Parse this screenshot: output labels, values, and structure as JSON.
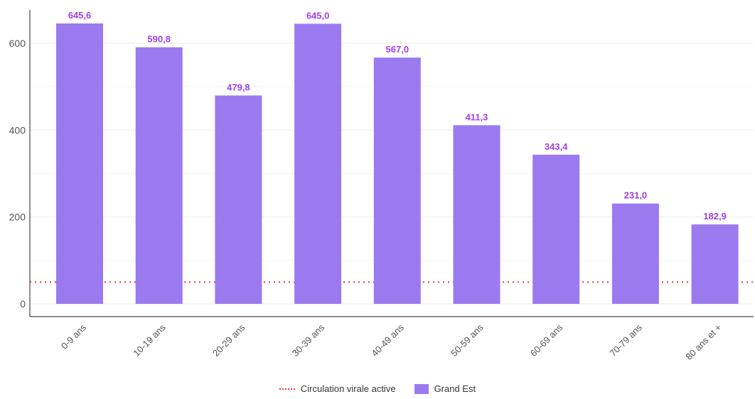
{
  "chart_data": {
    "type": "bar",
    "categories": [
      "0-9 ans",
      "10-19 ans",
      "20-29 ans",
      "30-39 ans",
      "40-49 ans",
      "50-59 ans",
      "60-69 ans",
      "70-79 ans",
      "80 ans et +"
    ],
    "series": [
      {
        "name": "Grand Est",
        "values": [
          645.6,
          590.8,
          479.8,
          645.0,
          567.0,
          411.3,
          343.4,
          231.0,
          182.9
        ],
        "labels": [
          "645,6",
          "590,8",
          "479,8",
          "645,0",
          "567,0",
          "411,3",
          "343,4",
          "231,0",
          "182,9"
        ],
        "color": "#9b7af0"
      }
    ],
    "reference_lines": [
      {
        "name": "Circulation virale active",
        "value": 50,
        "color": "#e63a3a",
        "style": "dotted"
      }
    ],
    "ylim": [
      0,
      680
    ],
    "yticks": [
      0,
      200,
      400,
      600
    ],
    "data_label_color": "#a43ee8",
    "grid": true,
    "legend_position": "bottom",
    "xlabel": "",
    "ylabel": "",
    "title": ""
  }
}
